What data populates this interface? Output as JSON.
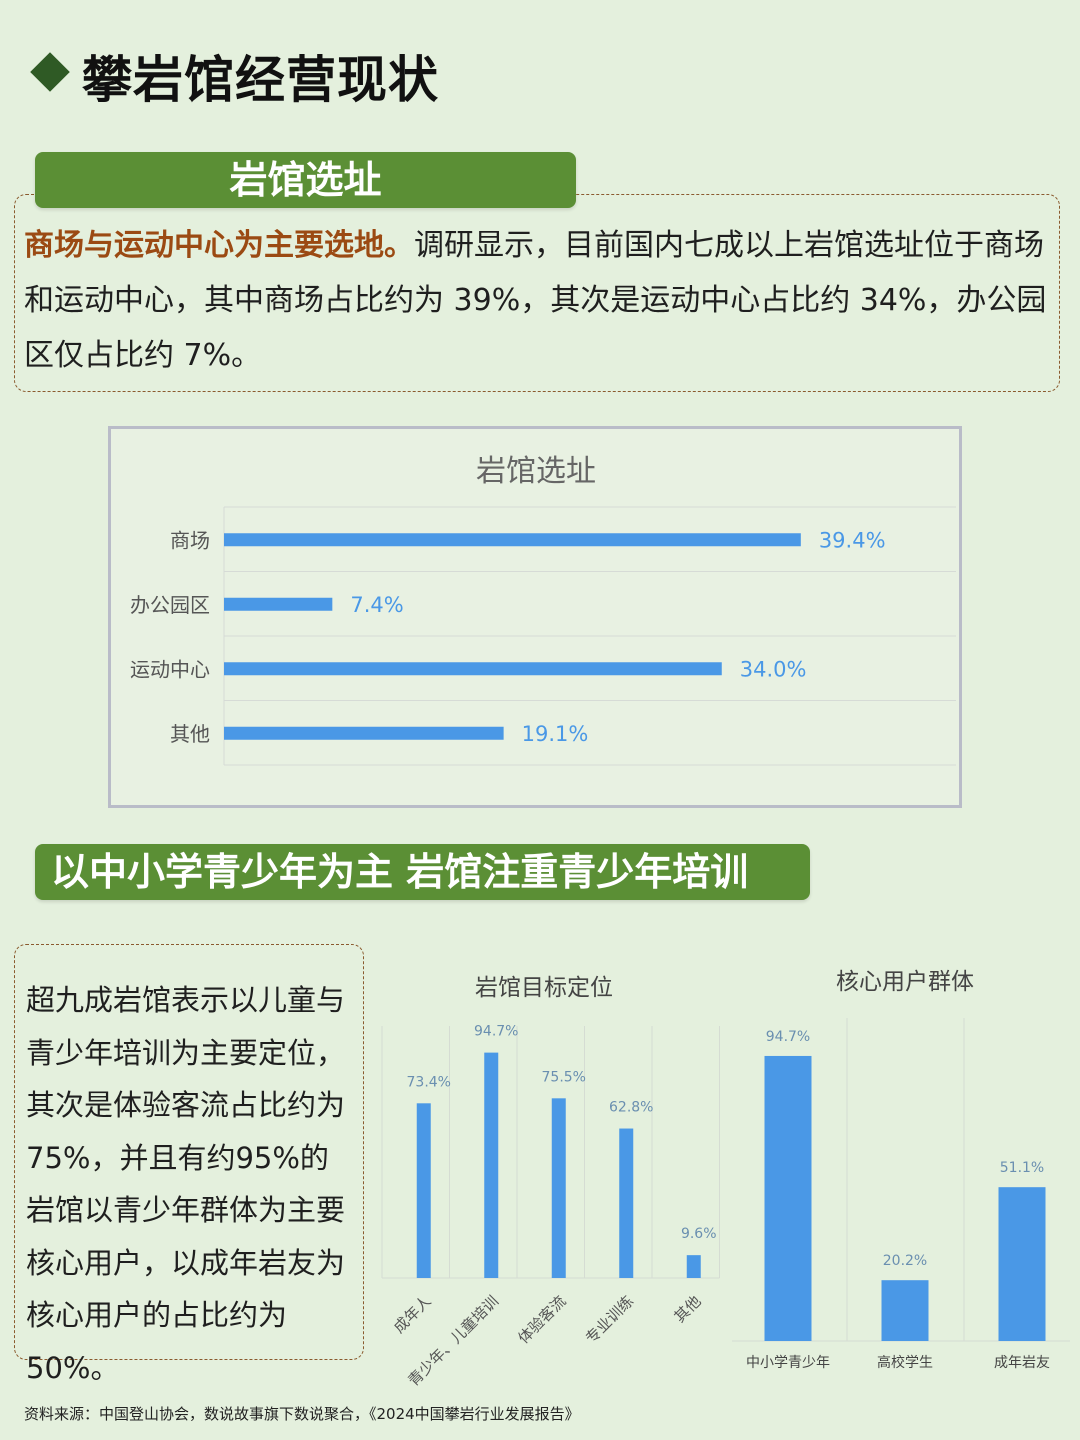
{
  "header": {
    "title": "攀岩馆经营现状"
  },
  "section1": {
    "label": "岩馆选址",
    "highlight": "商场与运动中心为主要选地。",
    "body": "调研显示，目前国内七成以上岩馆选址位于商场和运动中心，其中商场占比约为 39%，其次是运动中心占比约 34%，办公园区仅占比约 7%。"
  },
  "section2": {
    "label": "以中小学青少年为主 岩馆注重青少年培训",
    "body": "超九成岩馆表示以儿童与青少年培训为主要定位，其次是体验客流占比约为75%，并且有约95%的岩馆以青少年群体为主要核心用户，以成年岩友为核心用户的占比约为50%。"
  },
  "footer": {
    "source": "资料来源：中国登山协会，数说故事旗下数说聚合，《2024中国攀岩行业发展报告》"
  },
  "colors": {
    "bar": "#4a98e6",
    "label_green": "#5b8f35",
    "highlight": "#9b4a13"
  },
  "chart_data": [
    {
      "type": "bar",
      "orientation": "horizontal",
      "title": "岩馆选址",
      "categories": [
        "商场",
        "办公园区",
        "运动中心",
        "其他"
      ],
      "values": [
        39.4,
        7.4,
        34.0,
        19.1
      ],
      "value_labels": [
        "39.4%",
        "7.4%",
        "34.0%",
        "19.1%"
      ],
      "xlim": [
        0,
        50
      ],
      "grid": true
    },
    {
      "type": "bar",
      "orientation": "vertical",
      "title": "岩馆目标定位",
      "categories": [
        "成年人",
        "青少年、儿童培训",
        "体验客流",
        "专业训练",
        "其他"
      ],
      "values": [
        73.4,
        94.7,
        75.5,
        62.8,
        9.6
      ],
      "value_labels": [
        "73.4%",
        "94.7%",
        "75.5%",
        "62.8%",
        "9.6%"
      ],
      "ylim": [
        0,
        100
      ]
    },
    {
      "type": "bar",
      "orientation": "vertical",
      "title": "核心用户群体",
      "categories": [
        "中小学青少年",
        "高校学生",
        "成年岩友"
      ],
      "values": [
        94.7,
        20.2,
        51.1
      ],
      "value_labels": [
        "94.7%",
        "20.2%",
        "51.1%"
      ],
      "ylim": [
        0,
        100
      ]
    }
  ]
}
